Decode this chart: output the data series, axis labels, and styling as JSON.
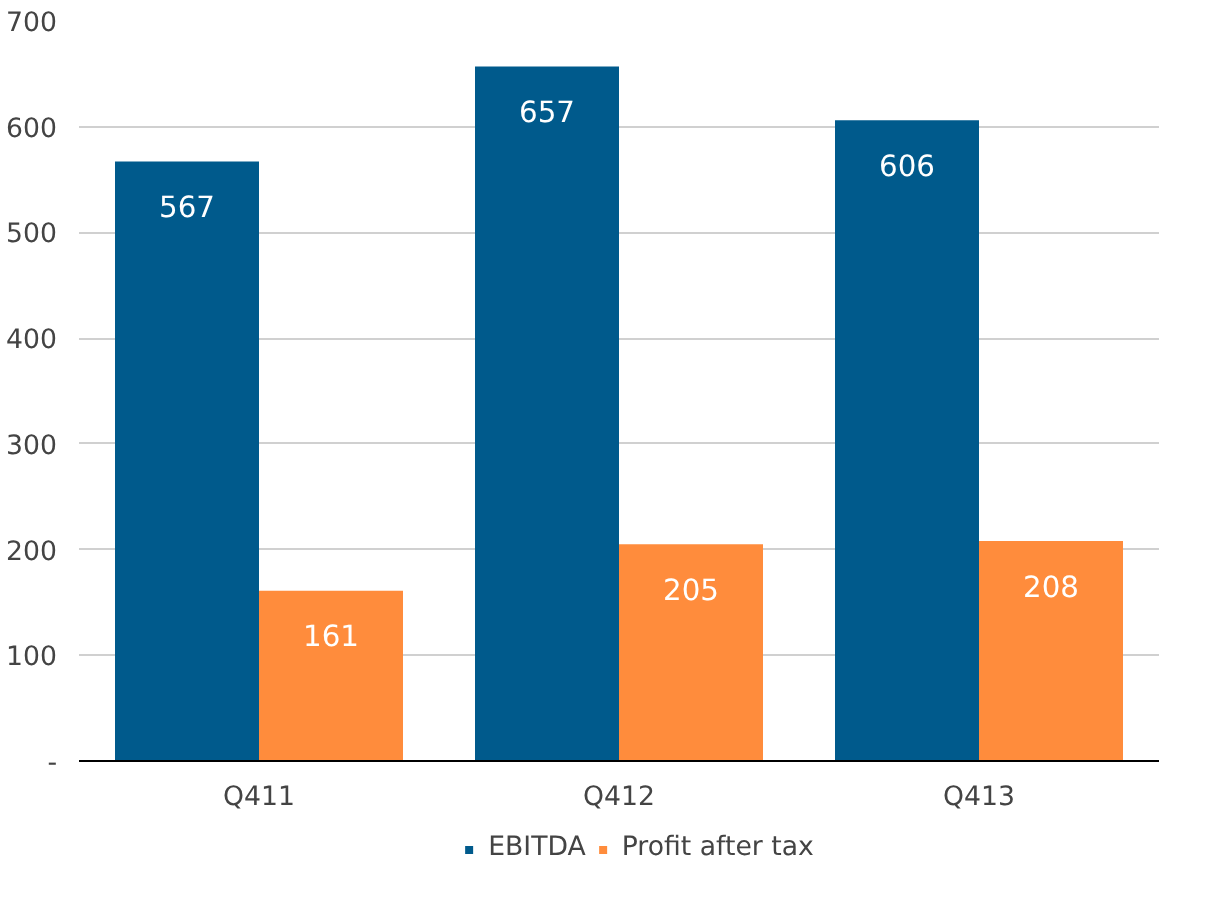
{
  "chart_data": {
    "type": "bar",
    "categories": [
      "Q411",
      "Q412",
      "Q413"
    ],
    "series": [
      {
        "name": "EBITDA",
        "color": "#005a8c",
        "values": [
          567,
          657,
          606
        ]
      },
      {
        "name": "Profit after tax",
        "color": "#ff8c3c",
        "values": [
          161,
          205,
          208
        ]
      }
    ],
    "ylim": [
      0,
      700
    ],
    "yticks": [
      {
        "value": 0,
        "label": "-"
      },
      100,
      200,
      300,
      400,
      500,
      600,
      700
    ],
    "grid": "y",
    "legend": "bottom",
    "data_labels": true
  }
}
